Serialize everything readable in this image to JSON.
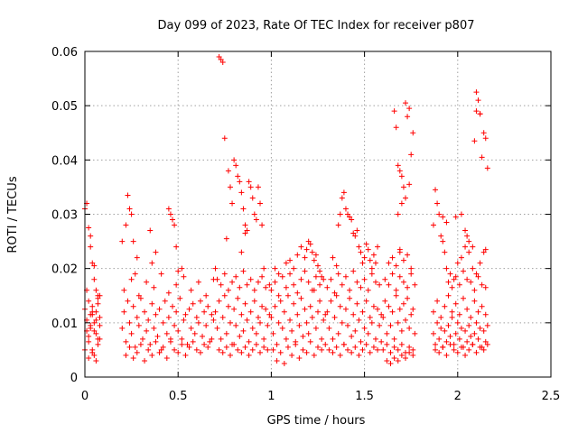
{
  "chart_data": {
    "type": "scatter",
    "title": "Day 099 of 2023, Rate Of TEC Index for receiver p807",
    "xlabel": "GPS time / hours",
    "ylabel": "ROTI / TECUs",
    "xlim": [
      0,
      2.5
    ],
    "ylim": [
      0,
      0.06
    ],
    "x_ticks": [
      "0",
      "0.5",
      "1",
      "1.5",
      "2",
      "2.5"
    ],
    "y_ticks": [
      "0",
      "0.01",
      "0.02",
      "0.03",
      "0.04",
      "0.05",
      "0.06"
    ],
    "grid": true,
    "marker": "+",
    "series": [
      {
        "name": "ROTI",
        "color": "#ff0000",
        "x": [
          0.0,
          0.01,
          0.01,
          0.02,
          0.02,
          0.03,
          0.03,
          0.04,
          0.04,
          0.05,
          0.05,
          0.06,
          0.06,
          0.07,
          0.07,
          0.08,
          0.08,
          0.01,
          0.02,
          0.03,
          0.04,
          0.05,
          0.06,
          0.07,
          0.02,
          0.04,
          0.06,
          0.08,
          0.0,
          0.03,
          0.05,
          0.07,
          0.01,
          0.02,
          0.03,
          0.04,
          0.05,
          0.06,
          0.07,
          0.08,
          0.0,
          0.04,
          0.2,
          0.21,
          0.22,
          0.23,
          0.24,
          0.25,
          0.26,
          0.27,
          0.28,
          0.29,
          0.3,
          0.31,
          0.32,
          0.33,
          0.34,
          0.35,
          0.36,
          0.37,
          0.38,
          0.39,
          0.4,
          0.41,
          0.42,
          0.43,
          0.44,
          0.45,
          0.46,
          0.47,
          0.48,
          0.49,
          0.5,
          0.51,
          0.52,
          0.53,
          0.54,
          0.55,
          0.56,
          0.57,
          0.58,
          0.59,
          0.6,
          0.61,
          0.62,
          0.63,
          0.64,
          0.65,
          0.66,
          0.67,
          0.68,
          0.69,
          0.22,
          0.24,
          0.26,
          0.28,
          0.3,
          0.32,
          0.34,
          0.36,
          0.38,
          0.4,
          0.42,
          0.44,
          0.46,
          0.48,
          0.5,
          0.52,
          0.54,
          0.56,
          0.58,
          0.6,
          0.62,
          0.64,
          0.66,
          0.68,
          0.21,
          0.25,
          0.29,
          0.33,
          0.37,
          0.41,
          0.45,
          0.49,
          0.53,
          0.57,
          0.61,
          0.65,
          0.69,
          0.22,
          0.23,
          0.24,
          0.25,
          0.26,
          0.27,
          0.35,
          0.36,
          0.45,
          0.46,
          0.47,
          0.48,
          0.49,
          0.5,
          0.2,
          0.28,
          0.38,
          0.52,
          0.7,
          0.71,
          0.72,
          0.73,
          0.74,
          0.75,
          0.76,
          0.77,
          0.78,
          0.79,
          0.8,
          0.81,
          0.82,
          0.83,
          0.84,
          0.85,
          0.86,
          0.87,
          0.88,
          0.89,
          0.9,
          0.91,
          0.92,
          0.93,
          0.94,
          0.95,
          0.96,
          0.97,
          0.98,
          0.99,
          0.71,
          0.73,
          0.75,
          0.77,
          0.79,
          0.81,
          0.83,
          0.85,
          0.87,
          0.89,
          0.91,
          0.93,
          0.95,
          0.97,
          0.99,
          0.72,
          0.74,
          0.76,
          0.78,
          0.8,
          0.82,
          0.84,
          0.86,
          0.88,
          0.9,
          0.92,
          0.94,
          0.96,
          0.98,
          0.72,
          0.73,
          0.74,
          0.75,
          0.77,
          0.78,
          0.79,
          0.8,
          0.81,
          0.82,
          0.83,
          0.84,
          0.85,
          0.86,
          0.87,
          0.88,
          0.89,
          0.9,
          0.91,
          0.92,
          0.93,
          0.94,
          0.95,
          0.96,
          0.76,
          0.84,
          0.7,
          0.86,
          1.0,
          1.01,
          1.02,
          1.03,
          1.04,
          1.05,
          1.06,
          1.07,
          1.08,
          1.09,
          1.1,
          1.11,
          1.12,
          1.13,
          1.14,
          1.15,
          1.16,
          1.17,
          1.18,
          1.19,
          1.2,
          1.21,
          1.22,
          1.23,
          1.24,
          1.25,
          1.26,
          1.27,
          1.28,
          1.29,
          1.01,
          1.03,
          1.05,
          1.07,
          1.09,
          1.11,
          1.13,
          1.15,
          1.17,
          1.19,
          1.21,
          1.23,
          1.25,
          1.27,
          1.29,
          1.0,
          1.02,
          1.04,
          1.06,
          1.08,
          1.1,
          1.12,
          1.14,
          1.16,
          1.18,
          1.2,
          1.22,
          1.24,
          1.26,
          1.28,
          1.02,
          1.04,
          1.08,
          1.12,
          1.16,
          1.18,
          1.19,
          1.2,
          1.21,
          1.22,
          1.23,
          1.24,
          1.25,
          1.26,
          1.27,
          1.1,
          1.14,
          1.3,
          1.31,
          1.32,
          1.33,
          1.34,
          1.35,
          1.36,
          1.37,
          1.38,
          1.39,
          1.4,
          1.41,
          1.42,
          1.43,
          1.44,
          1.45,
          1.46,
          1.47,
          1.48,
          1.49,
          1.5,
          1.51,
          1.52,
          1.53,
          1.54,
          1.55,
          1.56,
          1.57,
          1.58,
          1.59,
          1.31,
          1.33,
          1.35,
          1.37,
          1.39,
          1.41,
          1.43,
          1.45,
          1.47,
          1.49,
          1.51,
          1.53,
          1.55,
          1.57,
          1.59,
          1.3,
          1.32,
          1.34,
          1.36,
          1.38,
          1.4,
          1.42,
          1.44,
          1.46,
          1.48,
          1.5,
          1.52,
          1.54,
          1.56,
          1.58,
          1.36,
          1.37,
          1.38,
          1.39,
          1.4,
          1.41,
          1.42,
          1.43,
          1.44,
          1.45,
          1.46,
          1.47,
          1.48,
          1.49,
          1.5,
          1.51,
          1.52,
          1.53,
          1.55,
          1.57,
          1.33,
          1.35,
          1.54,
          1.56,
          1.6,
          1.61,
          1.62,
          1.63,
          1.64,
          1.65,
          1.66,
          1.67,
          1.68,
          1.69,
          1.7,
          1.71,
          1.72,
          1.73,
          1.74,
          1.75,
          1.76,
          1.77,
          1.6,
          1.62,
          1.64,
          1.66,
          1.68,
          1.7,
          1.72,
          1.74,
          1.76,
          1.61,
          1.63,
          1.65,
          1.67,
          1.69,
          1.71,
          1.73,
          1.75,
          1.77,
          1.66,
          1.67,
          1.68,
          1.69,
          1.7,
          1.71,
          1.72,
          1.73,
          1.74,
          1.75,
          1.76,
          1.63,
          1.65,
          1.67,
          1.69,
          1.71,
          1.73,
          1.75,
          1.62,
          1.64,
          1.66,
          1.68,
          1.7,
          1.72,
          1.74,
          1.76,
          1.68,
          1.7,
          1.72,
          1.74,
          1.69,
          1.87,
          1.88,
          1.89,
          1.9,
          1.91,
          1.92,
          1.93,
          1.94,
          1.95,
          1.96,
          1.97,
          1.98,
          1.99,
          2.0,
          2.01,
          2.02,
          2.03,
          2.04,
          2.05,
          2.06,
          2.07,
          2.08,
          2.09,
          2.1,
          2.11,
          2.12,
          2.13,
          2.14,
          2.15,
          2.16,
          1.88,
          1.9,
          1.92,
          1.94,
          1.96,
          1.98,
          2.0,
          2.02,
          2.04,
          2.06,
          2.08,
          2.1,
          2.12,
          2.14,
          2.16,
          1.87,
          1.89,
          1.91,
          1.93,
          1.95,
          1.97,
          1.99,
          2.01,
          2.03,
          2.05,
          2.07,
          2.09,
          2.11,
          2.13,
          2.15,
          1.88,
          1.89,
          1.9,
          1.91,
          1.92,
          1.93,
          1.94,
          1.96,
          1.98,
          2.0,
          2.02,
          2.04,
          2.06,
          2.08,
          2.1,
          2.12,
          2.14,
          1.95,
          1.97,
          1.99,
          2.01,
          2.03,
          2.05,
          2.07,
          2.09,
          2.11,
          2.13,
          2.15,
          1.87,
          1.92,
          1.94,
          2.02,
          2.04,
          2.06,
          2.08,
          2.09,
          2.1,
          2.11,
          2.12,
          2.13,
          2.14,
          2.15,
          2.16,
          2.1,
          2.12,
          1.99,
          2.05,
          2.15
        ],
        "y": [
          0.0125,
          0.0085,
          0.0105,
          0.014,
          0.0065,
          0.0115,
          0.009,
          0.005,
          0.013,
          0.01,
          0.004,
          0.012,
          0.008,
          0.015,
          0.006,
          0.0095,
          0.011,
          0.032,
          0.0275,
          0.024,
          0.021,
          0.018,
          0.016,
          0.0145,
          0.0035,
          0.0045,
          0.003,
          0.007,
          0.031,
          0.026,
          0.0205,
          0.0135,
          0.016,
          0.0075,
          0.0095,
          0.012,
          0.0085,
          0.0105,
          0.007,
          0.015,
          0.005,
          0.0115,
          0.009,
          0.012,
          0.0065,
          0.014,
          0.01,
          0.008,
          0.013,
          0.0055,
          0.011,
          0.0095,
          0.0145,
          0.007,
          0.012,
          0.0085,
          0.0105,
          0.006,
          0.0135,
          0.009,
          0.0115,
          0.0075,
          0.0125,
          0.005,
          0.01,
          0.014,
          0.008,
          0.011,
          0.0065,
          0.013,
          0.0095,
          0.012,
          0.0085,
          0.0145,
          0.007,
          0.0105,
          0.0115,
          0.006,
          0.0125,
          0.009,
          0.0135,
          0.008,
          0.011,
          0.01,
          0.014,
          0.0075,
          0.012,
          0.0095,
          0.013,
          0.0065,
          0.0115,
          0.0105,
          0.004,
          0.0055,
          0.0035,
          0.0045,
          0.006,
          0.003,
          0.005,
          0.004,
          0.0065,
          0.0045,
          0.0055,
          0.0035,
          0.007,
          0.005,
          0.0045,
          0.006,
          0.004,
          0.0055,
          0.0065,
          0.005,
          0.0045,
          0.006,
          0.0055,
          0.007,
          0.016,
          0.018,
          0.015,
          0.0175,
          0.0165,
          0.019,
          0.0155,
          0.017,
          0.0185,
          0.016,
          0.0175,
          0.015,
          0.018,
          0.028,
          0.0335,
          0.031,
          0.03,
          0.025,
          0.019,
          0.027,
          0.021,
          0.031,
          0.03,
          0.029,
          0.028,
          0.024,
          0.0195,
          0.025,
          0.022,
          0.023,
          0.02,
          0.012,
          0.009,
          0.014,
          0.007,
          0.011,
          0.015,
          0.008,
          0.013,
          0.01,
          0.006,
          0.0125,
          0.0095,
          0.0145,
          0.0075,
          0.0115,
          0.0085,
          0.0135,
          0.0105,
          0.0065,
          0.012,
          0.009,
          0.014,
          0.008,
          0.011,
          0.01,
          0.013,
          0.007,
          0.0125,
          0.0095,
          0.0115,
          0.018,
          0.017,
          0.019,
          0.016,
          0.0175,
          0.0185,
          0.0165,
          0.0195,
          0.017,
          0.018,
          0.016,
          0.0175,
          0.0185,
          0.0165,
          0.017,
          0.005,
          0.0045,
          0.0055,
          0.004,
          0.006,
          0.005,
          0.0045,
          0.0055,
          0.004,
          0.005,
          0.006,
          0.0045,
          0.0055,
          0.005,
          0.059,
          0.0585,
          0.058,
          0.044,
          0.038,
          0.035,
          0.032,
          0.04,
          0.039,
          0.037,
          0.036,
          0.034,
          0.031,
          0.028,
          0.027,
          0.036,
          0.035,
          0.033,
          0.03,
          0.029,
          0.035,
          0.032,
          0.028,
          0.02,
          0.0255,
          0.023,
          0.02,
          0.0265,
          0.011,
          0.008,
          0.013,
          0.006,
          0.01,
          0.014,
          0.009,
          0.012,
          0.007,
          0.015,
          0.0105,
          0.0085,
          0.0135,
          0.0065,
          0.0115,
          0.0095,
          0.0145,
          0.0075,
          0.0125,
          0.01,
          0.008,
          0.013,
          0.011,
          0.016,
          0.009,
          0.012,
          0.014,
          0.007,
          0.0105,
          0.0115,
          0.005,
          0.003,
          0.0045,
          0.0025,
          0.0055,
          0.004,
          0.006,
          0.0035,
          0.005,
          0.0045,
          0.0065,
          0.004,
          0.0055,
          0.005,
          0.006,
          0.016,
          0.0175,
          0.015,
          0.0185,
          0.0165,
          0.019,
          0.017,
          0.0155,
          0.018,
          0.0195,
          0.0175,
          0.016,
          0.0185,
          0.017,
          0.018,
          0.02,
          0.019,
          0.021,
          0.02,
          0.024,
          0.022,
          0.0235,
          0.025,
          0.0245,
          0.023,
          0.0215,
          0.0225,
          0.0205,
          0.0195,
          0.0185,
          0.0215,
          0.0225,
          0.012,
          0.009,
          0.014,
          0.007,
          0.011,
          0.015,
          0.008,
          0.013,
          0.01,
          0.006,
          0.0125,
          0.0095,
          0.0145,
          0.0075,
          0.0115,
          0.0085,
          0.0135,
          0.0105,
          0.0065,
          0.012,
          0.009,
          0.014,
          0.008,
          0.011,
          0.01,
          0.013,
          0.007,
          0.0125,
          0.0095,
          0.0115,
          0.005,
          0.0045,
          0.0055,
          0.004,
          0.006,
          0.005,
          0.0045,
          0.0055,
          0.004,
          0.005,
          0.006,
          0.0045,
          0.0055,
          0.005,
          0.0065,
          0.0165,
          0.018,
          0.0155,
          0.019,
          0.017,
          0.0185,
          0.016,
          0.0195,
          0.0175,
          0.0165,
          0.018,
          0.016,
          0.019,
          0.0175,
          0.017,
          0.028,
          0.03,
          0.033,
          0.034,
          0.031,
          0.03,
          0.0295,
          0.029,
          0.0265,
          0.026,
          0.027,
          0.024,
          0.023,
          0.021,
          0.022,
          0.0245,
          0.0235,
          0.0215,
          0.0225,
          0.024,
          0.022,
          0.0205,
          0.02,
          0.021,
          0.011,
          0.014,
          0.008,
          0.013,
          0.0095,
          0.012,
          0.007,
          0.015,
          0.01,
          0.0125,
          0.0085,
          0.0135,
          0.0105,
          0.0145,
          0.009,
          0.0115,
          0.0125,
          0.008,
          0.005,
          0.006,
          0.0045,
          0.0055,
          0.005,
          0.006,
          0.0045,
          0.0055,
          0.005,
          0.018,
          0.017,
          0.019,
          0.016,
          0.0185,
          0.0175,
          0.0165,
          0.019,
          0.017,
          0.049,
          0.046,
          0.039,
          0.038,
          0.037,
          0.035,
          0.0505,
          0.048,
          0.0495,
          0.041,
          0.045,
          0.021,
          0.022,
          0.0205,
          0.023,
          0.0215,
          0.0225,
          0.02,
          0.003,
          0.0025,
          0.0035,
          0.003,
          0.004,
          0.0035,
          0.0045,
          0.004,
          0.03,
          0.032,
          0.033,
          0.0355,
          0.0235,
          0.008,
          0.006,
          0.01,
          0.007,
          0.009,
          0.0055,
          0.0085,
          0.0065,
          0.0095,
          0.0075,
          0.011,
          0.006,
          0.008,
          0.01,
          0.007,
          0.009,
          0.0055,
          0.0085,
          0.0065,
          0.0095,
          0.0075,
          0.006,
          0.008,
          0.01,
          0.007,
          0.009,
          0.0055,
          0.0085,
          0.0065,
          0.0095,
          0.005,
          0.0045,
          0.0055,
          0.004,
          0.006,
          0.005,
          0.0045,
          0.0055,
          0.004,
          0.005,
          0.006,
          0.0045,
          0.0055,
          0.005,
          0.006,
          0.012,
          0.014,
          0.011,
          0.013,
          0.015,
          0.012,
          0.0135,
          0.0115,
          0.0145,
          0.0125,
          0.011,
          0.014,
          0.012,
          0.013,
          0.0115,
          0.0345,
          0.032,
          0.03,
          0.026,
          0.025,
          0.023,
          0.02,
          0.019,
          0.018,
          0.021,
          0.022,
          0.024,
          0.023,
          0.02,
          0.019,
          0.021,
          0.023,
          0.0175,
          0.0165,
          0.0185,
          0.017,
          0.0195,
          0.018,
          0.0175,
          0.016,
          0.0185,
          0.017,
          0.0165,
          0.028,
          0.0295,
          0.0285,
          0.03,
          0.027,
          0.025,
          0.024,
          0.0435,
          0.049,
          0.051,
          0.0485,
          0.0405,
          0.045,
          0.044,
          0.0385,
          0.0525,
          0.0485,
          0.0295,
          0.026,
          0.0235
        ]
      }
    ]
  }
}
